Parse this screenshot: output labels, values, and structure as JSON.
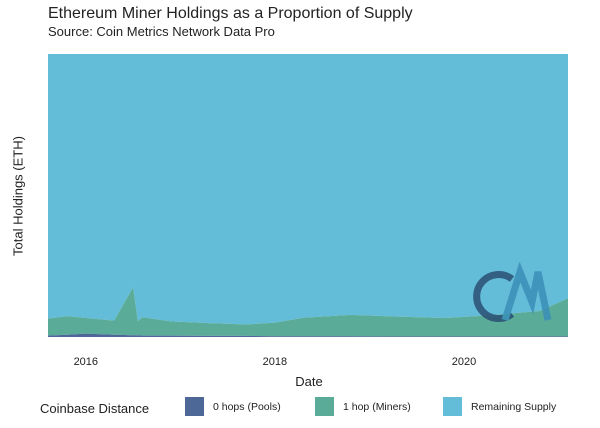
{
  "chart_data": {
    "type": "area",
    "title": "Ethereum Miner Holdings as a Proportion of Supply",
    "subtitle": "Source: Coin Metrics Network Data Pro",
    "xlabel": "Date",
    "ylabel": "Total Holdings (ETH)",
    "stacked": true,
    "normalized": true,
    "ylim": [
      0,
      1
    ],
    "x_ticks": [
      "2016",
      "2018",
      "2020"
    ],
    "x": [
      2015.6,
      2015.8,
      2016.0,
      2016.3,
      2016.5,
      2016.55,
      2016.6,
      2016.9,
      2017.3,
      2017.7,
      2018.0,
      2018.3,
      2018.8,
      2019.3,
      2019.8,
      2020.3,
      2020.8,
      2021.1
    ],
    "legend_title": "Coinbase Distance",
    "legend_position": "bottom",
    "grid": false,
    "series": [
      {
        "name": "0 hops (Pools)",
        "color": "#4d6897",
        "values": [
          0.005,
          0.008,
          0.012,
          0.008,
          0.006,
          0.006,
          0.005,
          0.005,
          0.004,
          0.004,
          0.003,
          0.003,
          0.003,
          0.002,
          0.002,
          0.002,
          0.002,
          0.002
        ]
      },
      {
        "name": "1 hop (Miners)",
        "color": "#5aac99",
        "values": [
          0.06,
          0.065,
          0.055,
          0.05,
          0.17,
          0.05,
          0.065,
          0.05,
          0.045,
          0.04,
          0.048,
          0.065,
          0.075,
          0.07,
          0.065,
          0.075,
          0.09,
          0.135
        ]
      },
      {
        "name": "Remaining Supply",
        "color": "#63bcd8",
        "values": [
          0.935,
          0.927,
          0.933,
          0.942,
          0.824,
          0.944,
          0.93,
          0.945,
          0.951,
          0.956,
          0.949,
          0.932,
          0.922,
          0.928,
          0.933,
          0.923,
          0.908,
          0.863
        ]
      }
    ]
  },
  "logo": {
    "text": "CM",
    "color_dark": "#2b4f74",
    "color_light": "#3a8fb8"
  }
}
